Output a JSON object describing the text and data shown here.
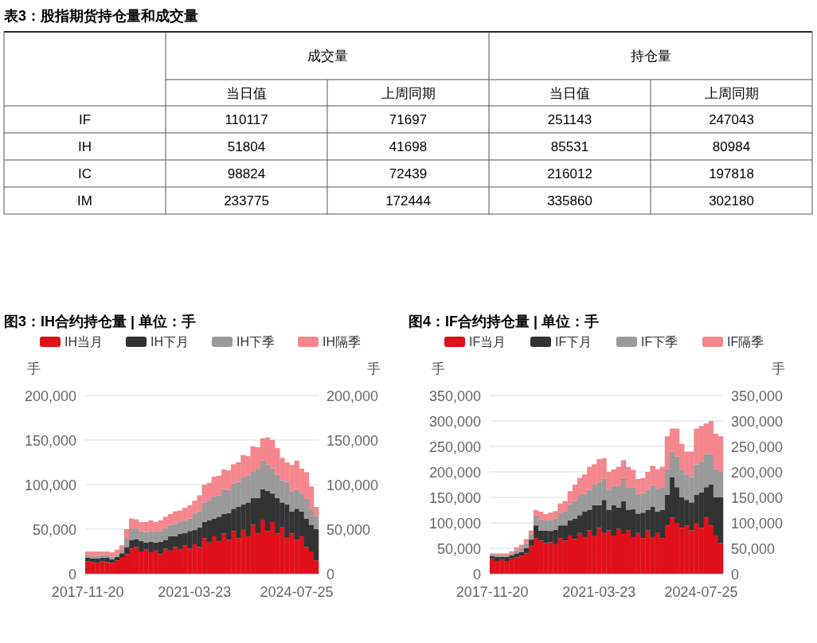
{
  "chart_data": [
    {
      "type": "heatmap",
      "title": "表3：股指期货持仓量和成交量",
      "annotations": [
        "成交量",
        "持仓量"
      ],
      "categories": [
        "当日值",
        "上周同期",
        "当日值",
        "上周同期"
      ],
      "y_categories": [
        "IF",
        "IH",
        "IC",
        "IM"
      ],
      "data_labels": true,
      "cells": [
        [
          110117,
          71697,
          251143,
          247043
        ],
        [
          51804,
          41698,
          85531,
          80984
        ],
        [
          98824,
          72439,
          216012,
          197818
        ],
        [
          233775,
          172444,
          335860,
          302180
        ]
      ]
    },
    {
      "type": "bar",
      "stacked": true,
      "title": "图3：IH合约持仓量 | 单位：手",
      "ylabel": "手",
      "y2label": "手",
      "legend": "top",
      "grid": "y",
      "categories": [
        "2017-11-20",
        null,
        null,
        null,
        null,
        null,
        null,
        null,
        null,
        null,
        null,
        null,
        null,
        null,
        null,
        null,
        null,
        null,
        null,
        null,
        null,
        null,
        "2021-03-23",
        null,
        null,
        null,
        null,
        null,
        null,
        null,
        null,
        null,
        null,
        null,
        null,
        null,
        null,
        null,
        null,
        null,
        null,
        null,
        null,
        "2024-07-25",
        null,
        null,
        null,
        null
      ],
      "ylim": [
        0,
        200000
      ],
      "yticks": [
        0,
        {
          "value": 50000,
          "label": "50,000"
        },
        {
          "value": 100000,
          "label": "100,000"
        },
        {
          "value": 150000,
          "label": "150,000"
        },
        {
          "value": 200000,
          "label": "200,000"
        }
      ],
      "y2lim": [
        0,
        200000
      ],
      "y2ticks": [
        0,
        {
          "value": 50000,
          "label": "50,000"
        },
        {
          "value": 100000,
          "label": "100,000"
        },
        {
          "value": 150000,
          "label": "150,000"
        },
        {
          "value": 200000,
          "label": "200,000"
        }
      ],
      "series": [
        {
          "name": "IH当月",
          "color": "#e0101a",
          "values": [
            14000,
            13000,
            12000,
            14000,
            13000,
            12000,
            15000,
            18000,
            22000,
            28000,
            30000,
            25000,
            27000,
            24000,
            26000,
            22000,
            28000,
            26000,
            30000,
            27000,
            32000,
            28000,
            33000,
            30000,
            40000,
            35000,
            42000,
            36000,
            45000,
            38000,
            48000,
            40000,
            50000,
            42000,
            55000,
            45000,
            60000,
            48000,
            58000,
            45000,
            52000,
            40000,
            45000,
            38000,
            42000,
            30000,
            25000,
            15000
          ]
        },
        {
          "name": "IH下月",
          "color": "#333333",
          "values": [
            4000,
            4000,
            5000,
            4000,
            5000,
            4000,
            4000,
            5000,
            8000,
            10000,
            9000,
            12000,
            8000,
            12000,
            9000,
            14000,
            10000,
            16000,
            12000,
            18000,
            14000,
            20000,
            16000,
            22000,
            18000,
            25000,
            20000,
            28000,
            22000,
            30000,
            25000,
            35000,
            28000,
            38000,
            30000,
            40000,
            35000,
            45000,
            32000,
            40000,
            28000,
            38000,
            25000,
            35000,
            28000,
            32000,
            30000,
            35000
          ]
        },
        {
          "name": "IH下季",
          "color": "#9a9a9a",
          "values": [
            3000,
            3000,
            3000,
            3000,
            3000,
            3000,
            3000,
            4000,
            10000,
            12000,
            12000,
            11000,
            12000,
            12000,
            13000,
            12000,
            13000,
            13000,
            14000,
            13000,
            14000,
            14000,
            18000,
            18000,
            22000,
            22000,
            25000,
            24000,
            28000,
            26000,
            28000,
            28000,
            30000,
            30000,
            30000,
            32000,
            32000,
            30000,
            28000,
            26000,
            25000,
            25000,
            22000,
            22000,
            20000,
            22000,
            18000,
            15000
          ]
        },
        {
          "name": "IH隔季",
          "color": "#f4868c",
          "values": [
            4000,
            5000,
            5000,
            4000,
            4000,
            5000,
            5000,
            5000,
            10000,
            12000,
            10000,
            10000,
            11000,
            12000,
            10000,
            12000,
            13000,
            12000,
            14000,
            13000,
            14000,
            15000,
            15000,
            18000,
            20000,
            20000,
            22000,
            22000,
            22000,
            22000,
            22000,
            22000,
            25000,
            22000,
            28000,
            25000,
            25000,
            30000,
            32000,
            30000,
            25000,
            22000,
            30000,
            32000,
            28000,
            30000,
            25000,
            10000
          ]
        }
      ]
    },
    {
      "type": "bar",
      "stacked": true,
      "title": "图4：IF合约持仓量 | 单位：手",
      "ylabel": "手",
      "y2label": "手",
      "legend": "top",
      "grid": "y",
      "categories": [
        "2017-11-20",
        null,
        null,
        null,
        null,
        null,
        null,
        null,
        null,
        null,
        null,
        null,
        null,
        null,
        null,
        null,
        null,
        null,
        null,
        null,
        null,
        null,
        "2021-03-23",
        null,
        null,
        null,
        null,
        null,
        null,
        null,
        null,
        null,
        null,
        null,
        null,
        null,
        null,
        null,
        null,
        null,
        null,
        null,
        null,
        "2024-07-25",
        null,
        null,
        null,
        null
      ],
      "ylim": [
        0,
        350000
      ],
      "yticks": [
        0,
        {
          "value": 50000,
          "label": "50,000"
        },
        {
          "value": 100000,
          "label": "100,000"
        },
        {
          "value": 150000,
          "label": "150,000"
        },
        {
          "value": 200000,
          "label": "200,000"
        },
        {
          "value": 250000,
          "label": "250,000"
        },
        {
          "value": 300000,
          "label": "300,000"
        },
        {
          "value": 350000,
          "label": "350,000"
        }
      ],
      "y2lim": [
        0,
        350000
      ],
      "y2ticks": [
        0,
        {
          "value": 50000,
          "label": "50,000"
        },
        {
          "value": 100000,
          "label": "100,000"
        },
        {
          "value": 150000,
          "label": "150,000"
        },
        {
          "value": 200000,
          "label": "200,000"
        },
        {
          "value": 250000,
          "label": "250,000"
        },
        {
          "value": 300000,
          "label": "300,000"
        },
        {
          "value": 350000,
          "label": "350,000"
        }
      ],
      "series": [
        {
          "name": "IF当月",
          "color": "#e0101a",
          "values": [
            30000,
            25000,
            28000,
            25000,
            30000,
            32000,
            35000,
            40000,
            55000,
            70000,
            65000,
            60000,
            62000,
            58000,
            70000,
            65000,
            75000,
            68000,
            80000,
            72000,
            85000,
            75000,
            90000,
            80000,
            85000,
            75000,
            88000,
            78000,
            85000,
            72000,
            80000,
            70000,
            85000,
            72000,
            80000,
            70000,
            95000,
            110000,
            100000,
            90000,
            95000,
            85000,
            100000,
            90000,
            110000,
            95000,
            75000,
            60000
          ]
        },
        {
          "name": "IF下月",
          "color": "#333333",
          "values": [
            5000,
            8000,
            5000,
            8000,
            6000,
            8000,
            8000,
            10000,
            12000,
            25000,
            20000,
            25000,
            22000,
            28000,
            25000,
            30000,
            30000,
            40000,
            35000,
            50000,
            40000,
            60000,
            45000,
            65000,
            40000,
            60000,
            42000,
            65000,
            40000,
            55000,
            38000,
            50000,
            40000,
            60000,
            42000,
            55000,
            60000,
            80000,
            70000,
            60000,
            50000,
            55000,
            55000,
            70000,
            60000,
            80000,
            75000,
            90000
          ]
        },
        {
          "name": "IF下季",
          "color": "#9a9a9a",
          "values": [
            3000,
            4000,
            4000,
            4000,
            4000,
            6000,
            8000,
            10000,
            10000,
            20000,
            22000,
            20000,
            22000,
            22000,
            25000,
            28000,
            32000,
            35000,
            38000,
            35000,
            40000,
            40000,
            45000,
            42000,
            40000,
            38000,
            42000,
            45000,
            45000,
            42000,
            38000,
            38000,
            40000,
            42000,
            45000,
            45000,
            50000,
            50000,
            60000,
            55000,
            50000,
            50000,
            60000,
            60000,
            65000,
            60000,
            55000,
            50000
          ]
        },
        {
          "name": "IF隔季",
          "color": "#f4868c",
          "values": [
            2000,
            3000,
            3000,
            3000,
            4000,
            6000,
            6000,
            8000,
            8000,
            10000,
            15000,
            12000,
            14000,
            15000,
            18000,
            20000,
            25000,
            32000,
            35000,
            38000,
            45000,
            40000,
            45000,
            40000,
            35000,
            32000,
            38000,
            35000,
            40000,
            35000,
            30000,
            30000,
            35000,
            38000,
            38000,
            40000,
            65000,
            45000,
            55000,
            50000,
            45000,
            50000,
            70000,
            70000,
            60000,
            65000,
            70000,
            70000
          ]
        }
      ]
    }
  ]
}
